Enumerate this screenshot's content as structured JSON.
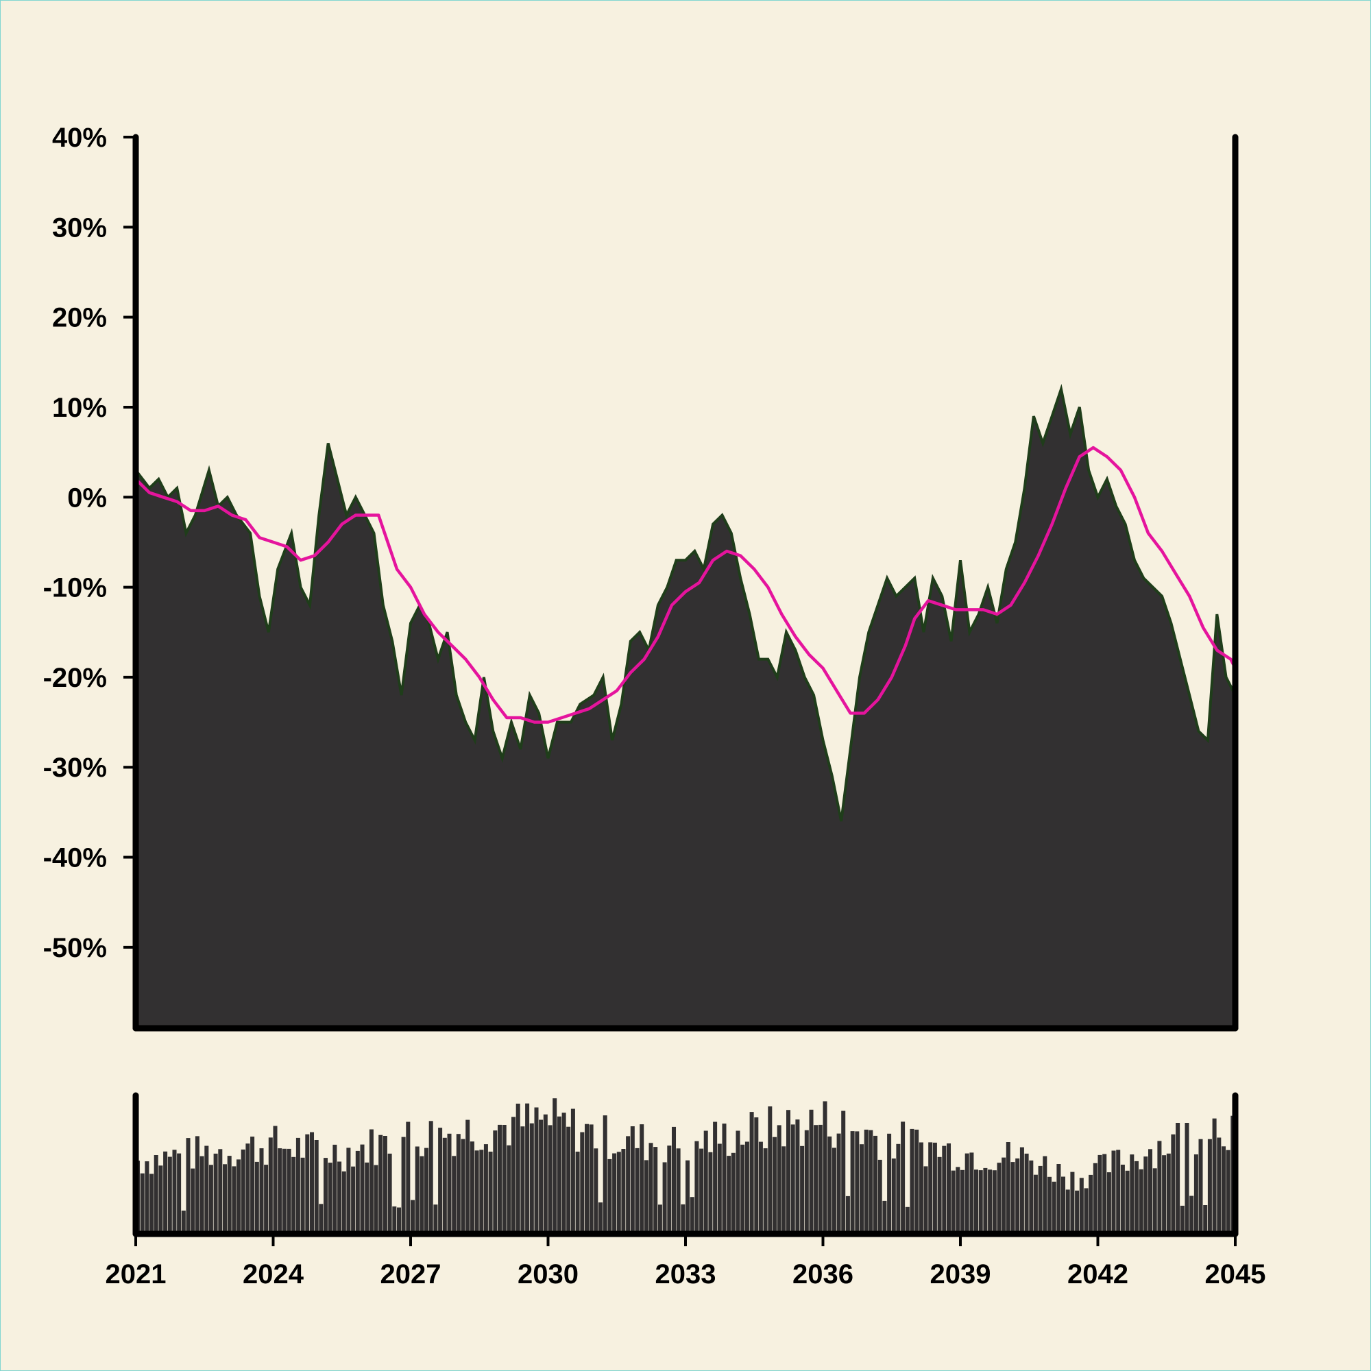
{
  "chart_data": [
    {
      "panel": "main",
      "type": "area",
      "title": "",
      "xlabel": "",
      "ylabel": "",
      "xlim": [
        2021,
        2045
      ],
      "ylim": [
        -59,
        40
      ],
      "y_ticks": [
        40,
        30,
        20,
        10,
        0,
        -10,
        -20,
        -30,
        -40,
        -50
      ],
      "y_tick_labels": [
        "40%",
        "30%",
        "20%",
        "10%",
        "0%",
        "-10%",
        "-20%",
        "-30%",
        "-40%",
        "-50%"
      ],
      "grid": false,
      "series": [
        {
          "role": "area",
          "color": "#323031",
          "edge_color": "#1f3d1a",
          "points": [
            [
              2021.0,
              3
            ],
            [
              2021.3,
              1
            ],
            [
              2021.5,
              2
            ],
            [
              2021.7,
              0
            ],
            [
              2021.9,
              1
            ],
            [
              2022.1,
              -4
            ],
            [
              2022.3,
              -2
            ],
            [
              2022.6,
              3
            ],
            [
              2022.8,
              -1
            ],
            [
              2023.0,
              0
            ],
            [
              2023.2,
              -2
            ],
            [
              2023.5,
              -4
            ],
            [
              2023.7,
              -11
            ],
            [
              2023.9,
              -15
            ],
            [
              2024.1,
              -8
            ],
            [
              2024.4,
              -4
            ],
            [
              2024.6,
              -10
            ],
            [
              2024.8,
              -12
            ],
            [
              2025.0,
              -2
            ],
            [
              2025.2,
              6
            ],
            [
              2025.4,
              2
            ],
            [
              2025.6,
              -2
            ],
            [
              2025.8,
              0
            ],
            [
              2026.0,
              -2
            ],
            [
              2026.2,
              -4
            ],
            [
              2026.4,
              -12
            ],
            [
              2026.6,
              -16
            ],
            [
              2026.8,
              -22
            ],
            [
              2027.0,
              -14
            ],
            [
              2027.2,
              -12
            ],
            [
              2027.4,
              -14
            ],
            [
              2027.6,
              -18
            ],
            [
              2027.8,
              -15
            ],
            [
              2028.0,
              -22
            ],
            [
              2028.2,
              -25
            ],
            [
              2028.4,
              -27
            ],
            [
              2028.6,
              -20
            ],
            [
              2028.8,
              -26
            ],
            [
              2029.0,
              -29
            ],
            [
              2029.2,
              -25
            ],
            [
              2029.4,
              -28
            ],
            [
              2029.6,
              -22
            ],
            [
              2029.8,
              -24
            ],
            [
              2030.0,
              -29
            ],
            [
              2030.2,
              -25
            ],
            [
              2030.5,
              -25
            ],
            [
              2030.7,
              -23
            ],
            [
              2031.0,
              -22
            ],
            [
              2031.2,
              -20
            ],
            [
              2031.4,
              -27
            ],
            [
              2031.6,
              -23
            ],
            [
              2031.8,
              -16
            ],
            [
              2032.0,
              -15
            ],
            [
              2032.2,
              -17
            ],
            [
              2032.4,
              -12
            ],
            [
              2032.6,
              -10
            ],
            [
              2032.8,
              -7
            ],
            [
              2033.0,
              -7
            ],
            [
              2033.2,
              -6
            ],
            [
              2033.4,
              -8
            ],
            [
              2033.6,
              -3
            ],
            [
              2033.8,
              -2
            ],
            [
              2034.0,
              -4
            ],
            [
              2034.2,
              -9
            ],
            [
              2034.4,
              -13
            ],
            [
              2034.6,
              -18
            ],
            [
              2034.8,
              -18
            ],
            [
              2035.0,
              -20
            ],
            [
              2035.2,
              -15
            ],
            [
              2035.4,
              -17
            ],
            [
              2035.6,
              -20
            ],
            [
              2035.8,
              -22
            ],
            [
              2036.0,
              -27
            ],
            [
              2036.2,
              -31
            ],
            [
              2036.4,
              -36
            ],
            [
              2036.6,
              -28
            ],
            [
              2036.8,
              -20
            ],
            [
              2037.0,
              -15
            ],
            [
              2037.2,
              -12
            ],
            [
              2037.4,
              -9
            ],
            [
              2037.6,
              -11
            ],
            [
              2037.8,
              -10
            ],
            [
              2038.0,
              -9
            ],
            [
              2038.2,
              -15
            ],
            [
              2038.4,
              -9
            ],
            [
              2038.6,
              -11
            ],
            [
              2038.8,
              -16
            ],
            [
              2039.0,
              -7
            ],
            [
              2039.2,
              -15
            ],
            [
              2039.4,
              -13
            ],
            [
              2039.6,
              -10
            ],
            [
              2039.8,
              -14
            ],
            [
              2040.0,
              -8
            ],
            [
              2040.2,
              -5
            ],
            [
              2040.4,
              1
            ],
            [
              2040.6,
              9
            ],
            [
              2040.8,
              6
            ],
            [
              2041.0,
              9
            ],
            [
              2041.2,
              12
            ],
            [
              2041.4,
              7
            ],
            [
              2041.6,
              10
            ],
            [
              2041.8,
              3
            ],
            [
              2042.0,
              0
            ],
            [
              2042.2,
              2
            ],
            [
              2042.4,
              -1
            ],
            [
              2042.6,
              -3
            ],
            [
              2042.8,
              -7
            ],
            [
              2043.0,
              -9
            ],
            [
              2043.2,
              -10
            ],
            [
              2043.4,
              -11
            ],
            [
              2043.6,
              -14
            ],
            [
              2043.8,
              -18
            ],
            [
              2044.0,
              -22
            ],
            [
              2044.2,
              -26
            ],
            [
              2044.4,
              -27
            ],
            [
              2044.6,
              -13
            ],
            [
              2044.8,
              -20
            ],
            [
              2045.0,
              -22
            ]
          ]
        },
        {
          "role": "moving-average",
          "color": "#e5149d",
          "points": [
            [
              2021.0,
              2
            ],
            [
              2021.3,
              0.5
            ],
            [
              2021.6,
              0
            ],
            [
              2021.9,
              -0.5
            ],
            [
              2022.2,
              -1.5
            ],
            [
              2022.5,
              -1.5
            ],
            [
              2022.8,
              -1
            ],
            [
              2023.1,
              -2
            ],
            [
              2023.4,
              -2.5
            ],
            [
              2023.7,
              -4.5
            ],
            [
              2024.0,
              -5
            ],
            [
              2024.3,
              -5.5
            ],
            [
              2024.6,
              -7
            ],
            [
              2024.9,
              -6.5
            ],
            [
              2025.2,
              -5
            ],
            [
              2025.5,
              -3
            ],
            [
              2025.8,
              -2
            ],
            [
              2026.1,
              -2
            ],
            [
              2026.3,
              -2
            ],
            [
              2026.5,
              -5
            ],
            [
              2026.7,
              -8
            ],
            [
              2027.0,
              -10
            ],
            [
              2027.3,
              -13
            ],
            [
              2027.6,
              -15
            ],
            [
              2027.9,
              -16.5
            ],
            [
              2028.2,
              -18
            ],
            [
              2028.5,
              -20
            ],
            [
              2028.8,
              -22.5
            ],
            [
              2029.1,
              -24.5
            ],
            [
              2029.4,
              -24.5
            ],
            [
              2029.7,
              -25
            ],
            [
              2030.0,
              -25
            ],
            [
              2030.3,
              -24.5
            ],
            [
              2030.6,
              -24
            ],
            [
              2030.9,
              -23.5
            ],
            [
              2031.2,
              -22.5
            ],
            [
              2031.5,
              -21.5
            ],
            [
              2031.8,
              -19.5
            ],
            [
              2032.1,
              -18
            ],
            [
              2032.4,
              -15.5
            ],
            [
              2032.7,
              -12
            ],
            [
              2033.0,
              -10.5
            ],
            [
              2033.3,
              -9.5
            ],
            [
              2033.6,
              -7
            ],
            [
              2033.9,
              -6
            ],
            [
              2034.2,
              -6.5
            ],
            [
              2034.5,
              -8
            ],
            [
              2034.8,
              -10
            ],
            [
              2035.1,
              -13
            ],
            [
              2035.4,
              -15.5
            ],
            [
              2035.7,
              -17.5
            ],
            [
              2036.0,
              -19
            ],
            [
              2036.3,
              -21.5
            ],
            [
              2036.6,
              -24
            ],
            [
              2036.9,
              -24
            ],
            [
              2037.2,
              -22.5
            ],
            [
              2037.5,
              -20
            ],
            [
              2037.8,
              -16.5
            ],
            [
              2038.0,
              -13.5
            ],
            [
              2038.3,
              -11.5
            ],
            [
              2038.6,
              -12
            ],
            [
              2038.9,
              -12.5
            ],
            [
              2039.2,
              -12.5
            ],
            [
              2039.5,
              -12.5
            ],
            [
              2039.8,
              -13
            ],
            [
              2040.1,
              -12
            ],
            [
              2040.4,
              -9.5
            ],
            [
              2040.7,
              -6.5
            ],
            [
              2041.0,
              -3
            ],
            [
              2041.3,
              1
            ],
            [
              2041.6,
              4.5
            ],
            [
              2041.9,
              5.5
            ],
            [
              2042.2,
              4.5
            ],
            [
              2042.5,
              3
            ],
            [
              2042.8,
              0
            ],
            [
              2043.1,
              -4
            ],
            [
              2043.4,
              -6
            ],
            [
              2043.7,
              -8.5
            ],
            [
              2044.0,
              -11
            ],
            [
              2044.3,
              -14.5
            ],
            [
              2044.6,
              -17
            ],
            [
              2044.9,
              -18
            ],
            [
              2045.0,
              -19
            ]
          ]
        }
      ]
    },
    {
      "panel": "volume",
      "type": "bar",
      "title": "",
      "xlim": [
        2021,
        2045
      ],
      "x_ticks": [
        2021,
        2024,
        2027,
        2030,
        2033,
        2036,
        2039,
        2042,
        2045
      ],
      "x_tick_labels": [
        "2021",
        "2024",
        "2027",
        "2030",
        "2033",
        "2036",
        "2039",
        "2042",
        "2045"
      ],
      "ylim": [
        0,
        1
      ],
      "color": "#323031",
      "bar_count": 240,
      "level_profile": [
        [
          2021.0,
          0.56
        ],
        [
          2022.5,
          0.62
        ],
        [
          2024.0,
          0.68
        ],
        [
          2025.5,
          0.62
        ],
        [
          2027.0,
          0.74
        ],
        [
          2028.5,
          0.8
        ],
        [
          2030.0,
          0.86
        ],
        [
          2031.5,
          0.72
        ],
        [
          2033.0,
          0.68
        ],
        [
          2034.5,
          0.78
        ],
        [
          2036.0,
          0.86
        ],
        [
          2037.5,
          0.72
        ],
        [
          2039.0,
          0.62
        ],
        [
          2040.5,
          0.58
        ],
        [
          2041.5,
          0.42
        ],
        [
          2043.0,
          0.62
        ],
        [
          2044.5,
          0.84
        ],
        [
          2045.0,
          0.82
        ]
      ]
    }
  ]
}
